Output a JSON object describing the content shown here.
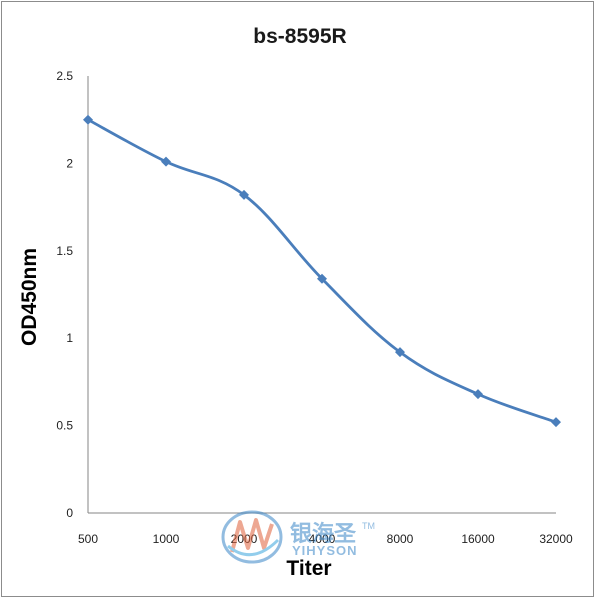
{
  "chart_data": {
    "type": "line",
    "title": "bs-8595R",
    "xlabel": "Titer",
    "ylabel": "OD450nm",
    "categories": [
      "500",
      "1000",
      "2000",
      "4000",
      "8000",
      "16000",
      "32000"
    ],
    "series": [
      {
        "values": [
          2.25,
          2.01,
          1.82,
          1.34,
          0.92,
          0.68,
          0.52
        ]
      }
    ],
    "ylim": [
      0,
      2.5
    ],
    "yticks": [
      "0",
      "0.5",
      "1",
      "1.5",
      "2",
      "2.5"
    ],
    "grid": false,
    "legend": "none",
    "colors": {
      "line": "#4a7ebb",
      "axis": "#868686"
    }
  },
  "watermark": {
    "brand_cn": "银海圣",
    "brand_en": "YIHYSON",
    "tm": "TM"
  }
}
